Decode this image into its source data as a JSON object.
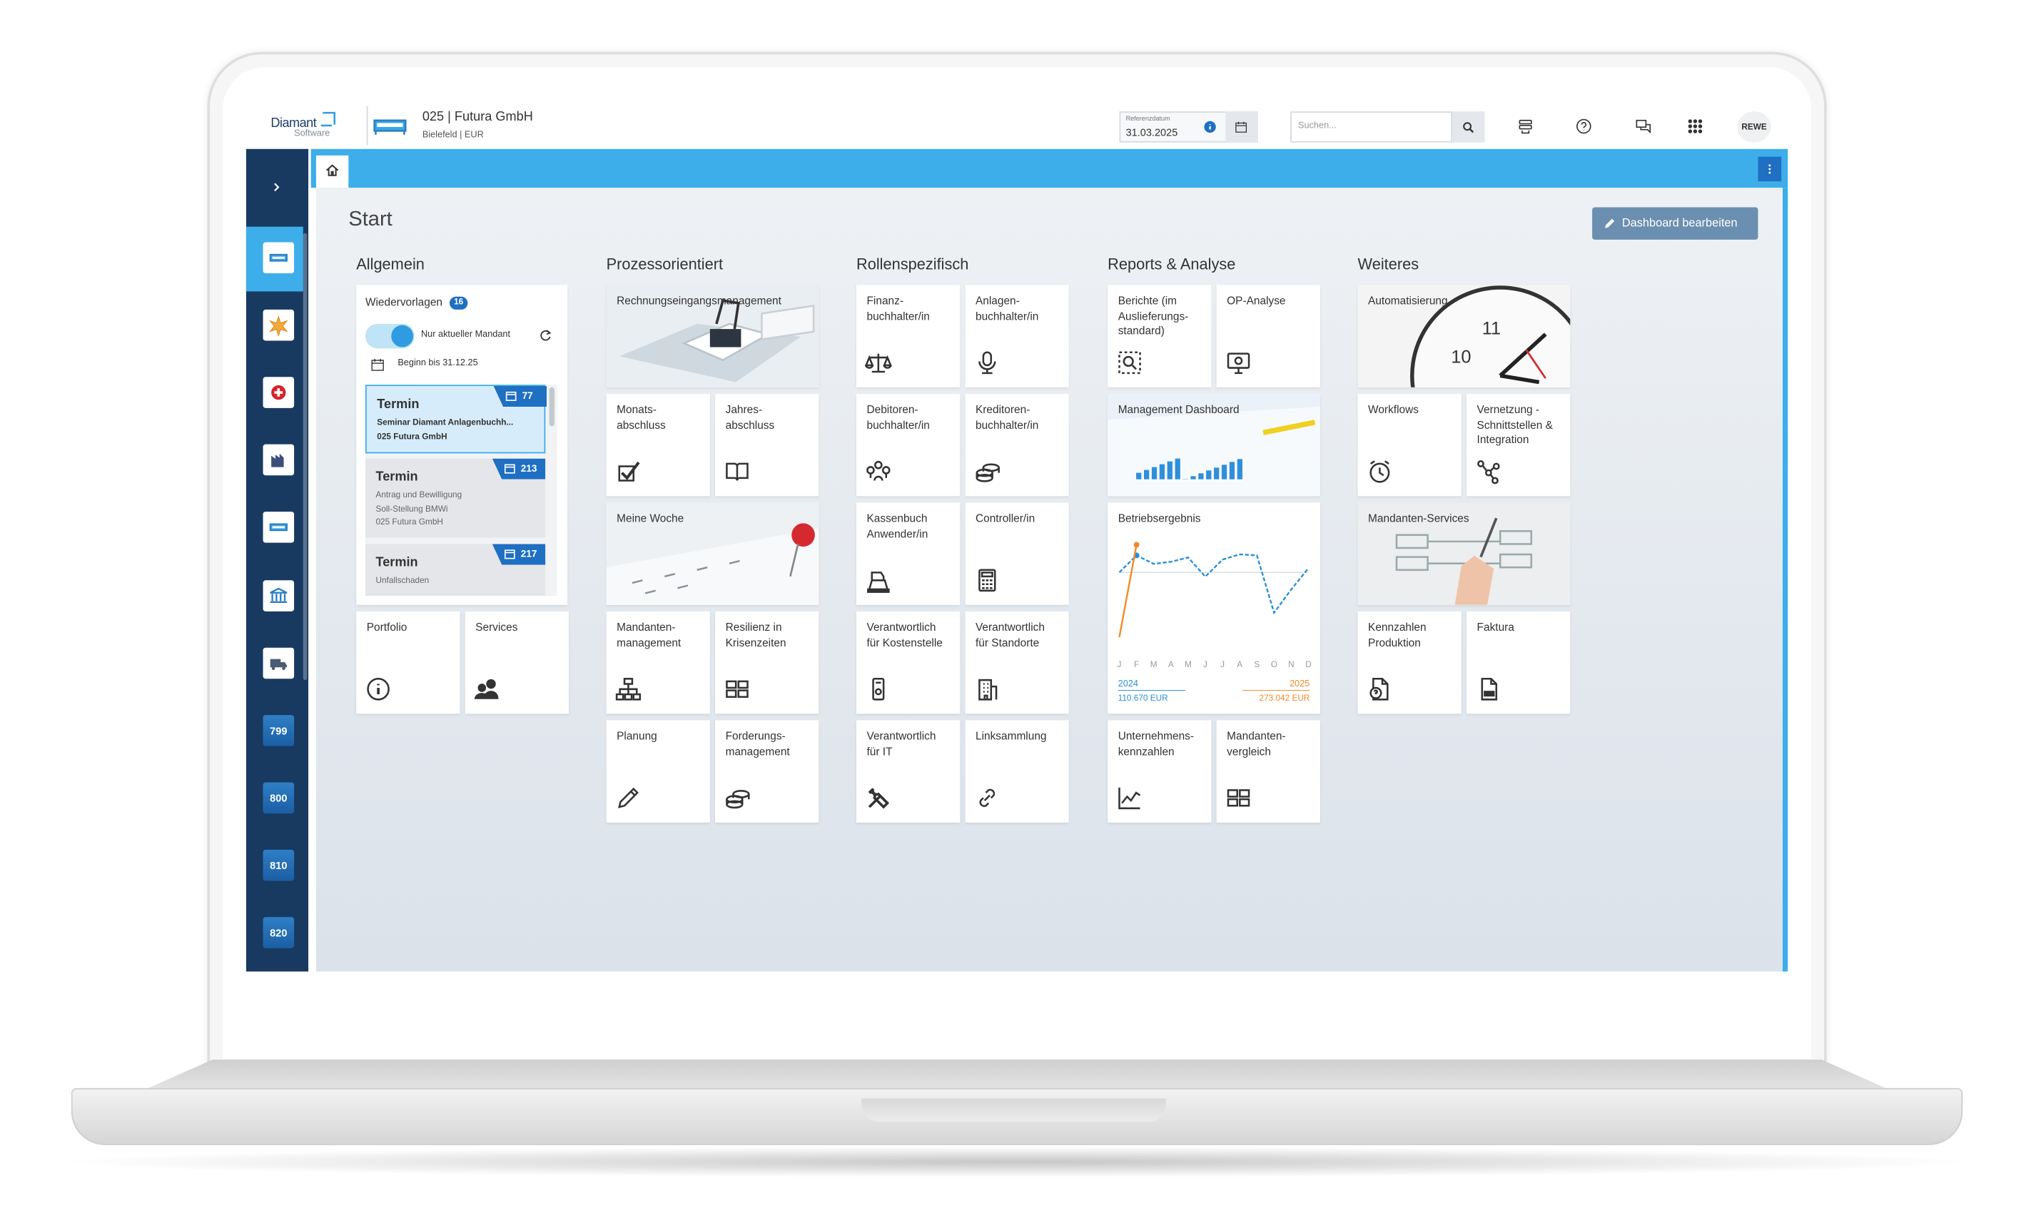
{
  "header": {
    "logo": "Diamant",
    "logo_sub": "Software",
    "company": "025 | Futura GmbH",
    "location": "Bielefeld | EUR",
    "date_label": "Referenzdatum",
    "date": "31.03.2025",
    "search_placeholder": "Suchen...",
    "user": "REWE"
  },
  "sidebar": {
    "items": [
      "799",
      "800",
      "810",
      "820"
    ]
  },
  "page": {
    "title": "Start",
    "edit_button": "Dashboard bearbeiten"
  },
  "wiedervorlagen": {
    "title": "Wiedervorlagen",
    "count": "16",
    "toggle": "Nur aktueller Mandant",
    "filter": "Beginn bis 31.12.25",
    "items": [
      {
        "title": "Termin",
        "number": "77",
        "lines": [
          "Seminar Diamant Anlagenbuchh...",
          "025 Futura GmbH"
        ]
      },
      {
        "title": "Termin",
        "number": "213",
        "lines": [
          "Antrag und Bewilligung",
          "Soll-Stellung BMWi",
          "025 Futura GmbH"
        ]
      },
      {
        "title": "Termin",
        "number": "217",
        "lines": [
          "Unfallschaden"
        ]
      }
    ]
  },
  "sections": [
    {
      "title": "Allgemein",
      "tiles": [
        "Portfolio",
        "Services"
      ]
    },
    {
      "title": "Prozessorientiert",
      "tiles": [
        "Rechnungseingangsmanagement",
        "Monats-abschluss",
        "Jahres-abschluss",
        "Meine Woche",
        "Mandanten-management",
        "Resilienz in Krisenzeiten",
        "Planung",
        "Forderungs-management"
      ]
    },
    {
      "title": "Rollenspezifisch",
      "tiles": [
        "Finanz-buchhalter/in",
        "Anlagen-buchhalter/in",
        "Debitoren-buchhalter/in",
        "Kreditoren-buchhalter/in",
        "Kassenbuch Anwender/in",
        "Controller/in",
        "Verantwortlich für Kostenstelle",
        "Verantwortlich für Standorte",
        "Verantwortlich für IT",
        "Linksammlung"
      ]
    },
    {
      "title": "Reports & Analyse",
      "tiles": [
        "Berichte (im Auslieferungs-standard)",
        "OP-Analyse",
        "Management Dashboard",
        "Unternehmens-kennzahlen",
        "Mandanten-vergleich"
      ]
    },
    {
      "title": "Weiteres",
      "tiles": [
        "Automatisierung",
        "Workflows",
        "Vernetzung - Schnittstellen & Integration",
        "Mandanten-Services",
        "Kennzahlen Produktion",
        "Faktura"
      ]
    }
  ],
  "chart_data": {
    "type": "line",
    "title": "Betriebsergebnis",
    "categories": [
      "J",
      "F",
      "M",
      "A",
      "M",
      "J",
      "J",
      "A",
      "S",
      "O",
      "N",
      "D"
    ],
    "ylim": [
      0,
      100
    ],
    "series": [
      {
        "name": "2024",
        "color": "#2a8fd6",
        "total": "110.670 EUR",
        "values": [
          66,
          82,
          74,
          76,
          80,
          62,
          78,
          83,
          82,
          28,
          50,
          70
        ]
      },
      {
        "name": "2025",
        "color": "#f08a24",
        "total": "273.042 EUR",
        "values": [
          5,
          92,
          null,
          null,
          null,
          null,
          null,
          null,
          null,
          null,
          null,
          null
        ]
      }
    ]
  }
}
